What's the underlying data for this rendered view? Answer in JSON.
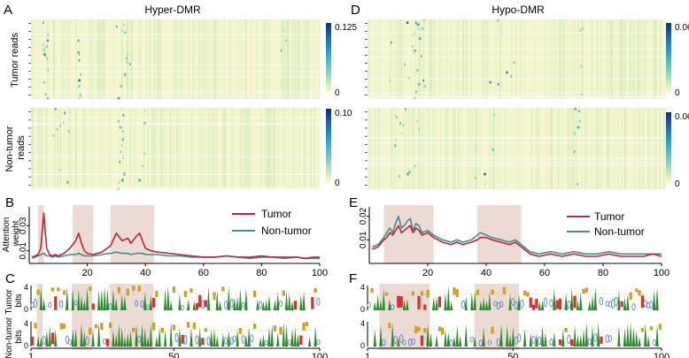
{
  "figure": {
    "panel_letters": [
      "A",
      "B",
      "C",
      "D",
      "E",
      "F"
    ],
    "colorbar_gradient": [
      "#ffffcc",
      "#c7e9b4",
      "#7fcdbb",
      "#41b6c4",
      "#1d91c0",
      "#225ea8",
      "#0c2c84"
    ],
    "colors": {
      "tumor": "#b22b3a",
      "nontumor": "#4a8a8a",
      "highlight": "#e9d3cc",
      "base_green": "#2a8a2a",
      "base_red": "#d93030",
      "base_blue": "#5f86c6",
      "base_gold": "#c9a227"
    }
  },
  "chart_data": [
    {
      "panel": "A",
      "type": "heatmap",
      "title": "Hyper-DMR",
      "rows": [
        {
          "label": "Tumor reads",
          "colorbar": {
            "min": "0",
            "max": "0.125"
          }
        },
        {
          "label": "Non-tumor reads",
          "colorbar": {
            "min": "0",
            "max": "0.10"
          }
        }
      ]
    },
    {
      "panel": "D",
      "type": "heatmap",
      "title": "Hypo-DMR",
      "rows": [
        {
          "label": "",
          "colorbar": {
            "min": "0",
            "max": "0.06"
          }
        },
        {
          "label": "",
          "colorbar": {
            "min": "0",
            "max": "0.06"
          }
        }
      ]
    },
    {
      "panel": "B",
      "type": "line",
      "ylabel": "Attention weight",
      "xlim": [
        0,
        100
      ],
      "ylim": [
        0,
        0.045
      ],
      "xticks": [
        "20",
        "40",
        "60",
        "80",
        "100"
      ],
      "yticks": [
        "0.01",
        "0.03"
      ],
      "highlight_ranges": [
        [
          3,
          5
        ],
        [
          15,
          22
        ],
        [
          28,
          43
        ]
      ],
      "series": [
        {
          "name": "Tumor",
          "x": [
            1,
            2,
            3,
            4,
            5,
            6,
            7,
            8,
            9,
            10,
            12,
            14,
            16,
            17,
            18,
            19,
            20,
            22,
            25,
            28,
            30,
            32,
            34,
            35,
            37,
            38,
            39,
            40,
            42,
            44,
            48,
            52,
            56,
            60,
            64,
            68,
            72,
            76,
            80,
            84,
            88,
            92,
            95,
            98,
            100
          ],
          "values": [
            0.005,
            0.006,
            0.007,
            0.012,
            0.04,
            0.012,
            0.007,
            0.006,
            0.007,
            0.006,
            0.008,
            0.012,
            0.018,
            0.024,
            0.016,
            0.01,
            0.008,
            0.007,
            0.009,
            0.014,
            0.024,
            0.018,
            0.02,
            0.016,
            0.022,
            0.024,
            0.018,
            0.012,
            0.01,
            0.009,
            0.008,
            0.007,
            0.006,
            0.005,
            0.005,
            0.006,
            0.005,
            0.005,
            0.006,
            0.005,
            0.005,
            0.005,
            0.004,
            0.005,
            0.005
          ]
        },
        {
          "name": "Non-tumor",
          "x": [
            1,
            2,
            3,
            4,
            5,
            6,
            7,
            8,
            9,
            10,
            12,
            14,
            16,
            17,
            18,
            19,
            20,
            22,
            25,
            28,
            30,
            32,
            34,
            35,
            37,
            38,
            39,
            40,
            42,
            44,
            48,
            52,
            56,
            60,
            64,
            68,
            72,
            76,
            80,
            84,
            88,
            92,
            95,
            98,
            100
          ],
          "values": [
            0.004,
            0.005,
            0.006,
            0.007,
            0.008,
            0.006,
            0.006,
            0.005,
            0.006,
            0.005,
            0.006,
            0.007,
            0.007,
            0.008,
            0.007,
            0.006,
            0.006,
            0.006,
            0.007,
            0.008,
            0.009,
            0.008,
            0.008,
            0.007,
            0.008,
            0.008,
            0.008,
            0.007,
            0.007,
            0.007,
            0.006,
            0.006,
            0.005,
            0.005,
            0.005,
            0.006,
            0.005,
            0.004,
            0.005,
            0.005,
            0.004,
            0.005,
            0.004,
            0.004,
            0.004
          ]
        }
      ]
    },
    {
      "panel": "E",
      "type": "line",
      "ylabel": "",
      "xlim": [
        0,
        100
      ],
      "ylim": [
        0,
        0.024
      ],
      "xticks": [
        "20",
        "40",
        "60",
        "80",
        "100"
      ],
      "yticks": [
        "0.01",
        "0.02"
      ],
      "highlight_ranges": [
        [
          5,
          22
        ],
        [
          37,
          52
        ]
      ],
      "series": [
        {
          "name": "Tumor",
          "x": [
            1,
            3,
            5,
            6,
            7,
            8,
            9,
            10,
            11,
            12,
            13,
            14,
            15,
            16,
            17,
            18,
            20,
            22,
            25,
            28,
            30,
            32,
            35,
            37,
            38,
            40,
            42,
            45,
            48,
            50,
            52,
            55,
            58,
            62,
            66,
            70,
            74,
            78,
            82,
            86,
            90,
            94,
            97,
            100
          ],
          "values": [
            0.006,
            0.007,
            0.01,
            0.011,
            0.013,
            0.012,
            0.014,
            0.016,
            0.013,
            0.014,
            0.015,
            0.016,
            0.013,
            0.015,
            0.014,
            0.012,
            0.013,
            0.011,
            0.009,
            0.008,
            0.009,
            0.008,
            0.009,
            0.01,
            0.011,
            0.011,
            0.01,
            0.009,
            0.008,
            0.009,
            0.007,
            0.004,
            0.003,
            0.004,
            0.003,
            0.004,
            0.003,
            0.003,
            0.004,
            0.003,
            0.003,
            0.003,
            0.004,
            0.003
          ]
        },
        {
          "name": "Non-tumor",
          "x": [
            1,
            3,
            5,
            6,
            7,
            8,
            9,
            10,
            11,
            12,
            13,
            14,
            15,
            16,
            17,
            18,
            20,
            22,
            25,
            28,
            30,
            32,
            35,
            37,
            38,
            40,
            42,
            45,
            48,
            50,
            52,
            55,
            58,
            62,
            66,
            70,
            74,
            78,
            82,
            86,
            90,
            94,
            97,
            100
          ],
          "values": [
            0.007,
            0.008,
            0.011,
            0.013,
            0.015,
            0.013,
            0.017,
            0.02,
            0.015,
            0.016,
            0.018,
            0.019,
            0.014,
            0.017,
            0.016,
            0.013,
            0.014,
            0.012,
            0.01,
            0.009,
            0.01,
            0.009,
            0.01,
            0.012,
            0.013,
            0.012,
            0.011,
            0.01,
            0.009,
            0.01,
            0.008,
            0.005,
            0.004,
            0.005,
            0.004,
            0.005,
            0.004,
            0.004,
            0.005,
            0.004,
            0.004,
            0.004,
            0.004,
            0.004
          ]
        }
      ]
    },
    {
      "panel": "C",
      "type": "sequence-logo",
      "rows": [
        {
          "label": "Tumor bits"
        },
        {
          "label": "Non-tumor bits"
        }
      ],
      "yticks": [
        "4",
        "0"
      ],
      "xlim": [
        1,
        100
      ],
      "xticks": [
        "1",
        "50",
        "100"
      ],
      "highlight_ranges": [
        [
          3,
          5
        ],
        [
          15,
          22
        ],
        [
          28,
          43
        ]
      ]
    },
    {
      "panel": "F",
      "type": "sequence-logo",
      "rows": [
        {
          "label": ""
        },
        {
          "label": ""
        }
      ],
      "yticks": [
        "4",
        "0"
      ],
      "xlim": [
        1,
        100
      ],
      "xticks": [
        "1",
        "50",
        "100"
      ],
      "highlight_ranges": [
        [
          5,
          22
        ],
        [
          37,
          52
        ]
      ]
    }
  ]
}
